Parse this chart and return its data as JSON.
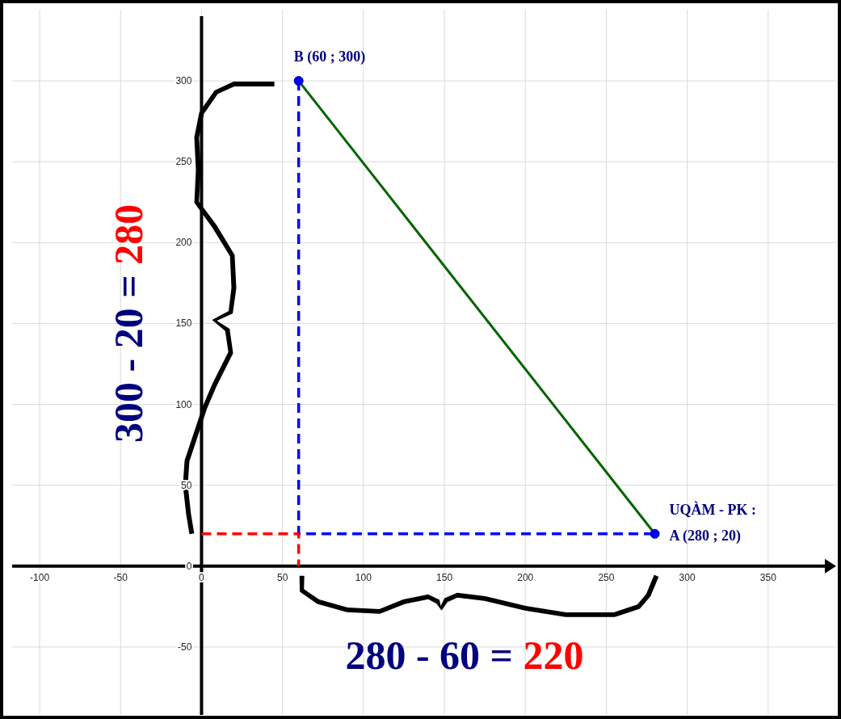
{
  "chart_data": {
    "type": "scatter",
    "xlim": [
      -117,
      392
    ],
    "ylim": [
      -92,
      344
    ],
    "xticks": [
      -100,
      -50,
      0,
      50,
      100,
      150,
      200,
      250,
      300,
      350
    ],
    "yticks": [
      -50,
      0,
      50,
      100,
      150,
      200,
      250,
      300
    ],
    "grid": true,
    "marker": "circle",
    "series": [
      {
        "type": "line",
        "color": "#0000ff",
        "line_style": "dashed",
        "marker": "none",
        "x": [
          60,
          60,
          280
        ],
        "values": [
          300,
          20,
          20
        ]
      },
      {
        "type": "line",
        "color": "#ff0000",
        "line_style": "dashed",
        "marker": "none",
        "x": [
          0,
          60,
          60
        ],
        "values": [
          20,
          20,
          0
        ]
      },
      {
        "type": "line",
        "color": "#006400",
        "line_style": "solid",
        "marker": "none",
        "x": [
          60,
          280
        ],
        "values": [
          300,
          20
        ]
      },
      {
        "color": "#0000ff",
        "x": [
          60,
          280
        ],
        "values": [
          300,
          20
        ]
      }
    ],
    "annotations": [
      {
        "text": "B (60 ; 300)",
        "x": 60,
        "y": 300
      },
      {
        "text": "UQÀM - PK :\nA (280 ; 20)",
        "x": 280,
        "y": 20
      },
      "300 - 20 = 280",
      "280 - 60 = 220"
    ]
  }
}
